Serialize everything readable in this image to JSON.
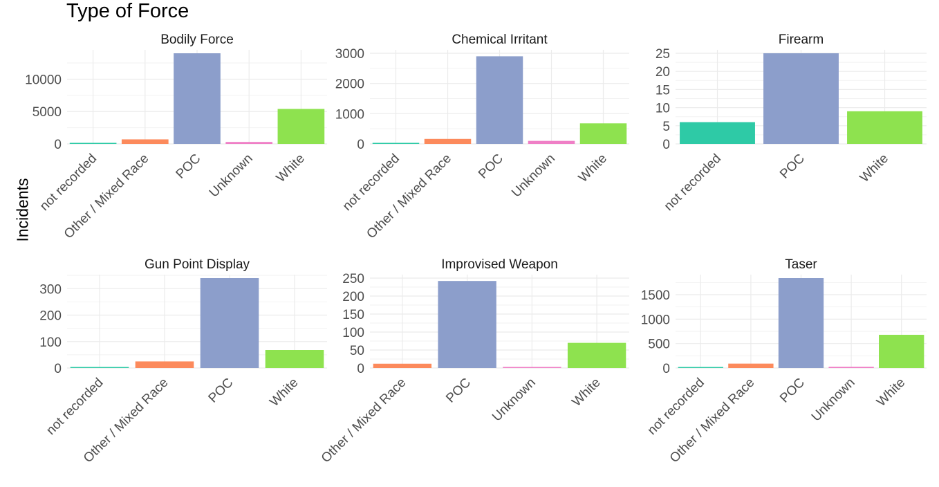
{
  "title": "Type of Force",
  "ylabel": "Incidents",
  "colors": {
    "not recorded": "#2ecaa6",
    "Other / Mixed Race": "#fc8a5c",
    "POC": "#8c9ecb",
    "Unknown": "#ef7fc6",
    "White": "#8ee24f"
  },
  "chart_data": [
    {
      "type": "bar",
      "title": "Bodily Force",
      "categories": [
        "not recorded",
        "Other / Mixed Race",
        "POC",
        "Unknown",
        "White"
      ],
      "values": [
        80,
        700,
        14000,
        300,
        5400
      ],
      "yticks": [
        0,
        5000,
        10000
      ],
      "ylim": [
        0,
        14000
      ]
    },
    {
      "type": "bar",
      "title": "Chemical Irritant",
      "categories": [
        "not recorded",
        "Other / Mixed Race",
        "POC",
        "Unknown",
        "White"
      ],
      "values": [
        15,
        165,
        2900,
        100,
        680
      ],
      "yticks": [
        0,
        1000,
        2000,
        3000
      ],
      "ylim": [
        0,
        3000
      ]
    },
    {
      "type": "bar",
      "title": "Firearm",
      "categories": [
        "not recorded",
        "POC",
        "White"
      ],
      "values": [
        6,
        25,
        9
      ],
      "yticks": [
        0,
        5,
        10,
        15,
        20,
        25
      ],
      "ylim": [
        0,
        25
      ]
    },
    {
      "type": "bar",
      "title": "Gun Point Display",
      "categories": [
        "not recorded",
        "Other / Mixed Race",
        "POC",
        "White"
      ],
      "values": [
        2,
        25,
        340,
        68
      ],
      "yticks": [
        0,
        100,
        200,
        300
      ],
      "ylim": [
        0,
        340
      ]
    },
    {
      "type": "bar",
      "title": "Improvised Weapon",
      "categories": [
        "Other / Mixed Race",
        "POC",
        "Unknown",
        "White"
      ],
      "values": [
        12,
        242,
        3,
        70
      ],
      "yticks": [
        0,
        50,
        100,
        150,
        200,
        250
      ],
      "ylim": [
        0,
        250
      ]
    },
    {
      "type": "bar",
      "title": "Taser",
      "categories": [
        "not recorded",
        "Other / Mixed Race",
        "POC",
        "Unknown",
        "White"
      ],
      "values": [
        10,
        90,
        1840,
        25,
        680
      ],
      "yticks": [
        0,
        500,
        1000,
        1500
      ],
      "ylim": [
        0,
        1840
      ]
    }
  ]
}
